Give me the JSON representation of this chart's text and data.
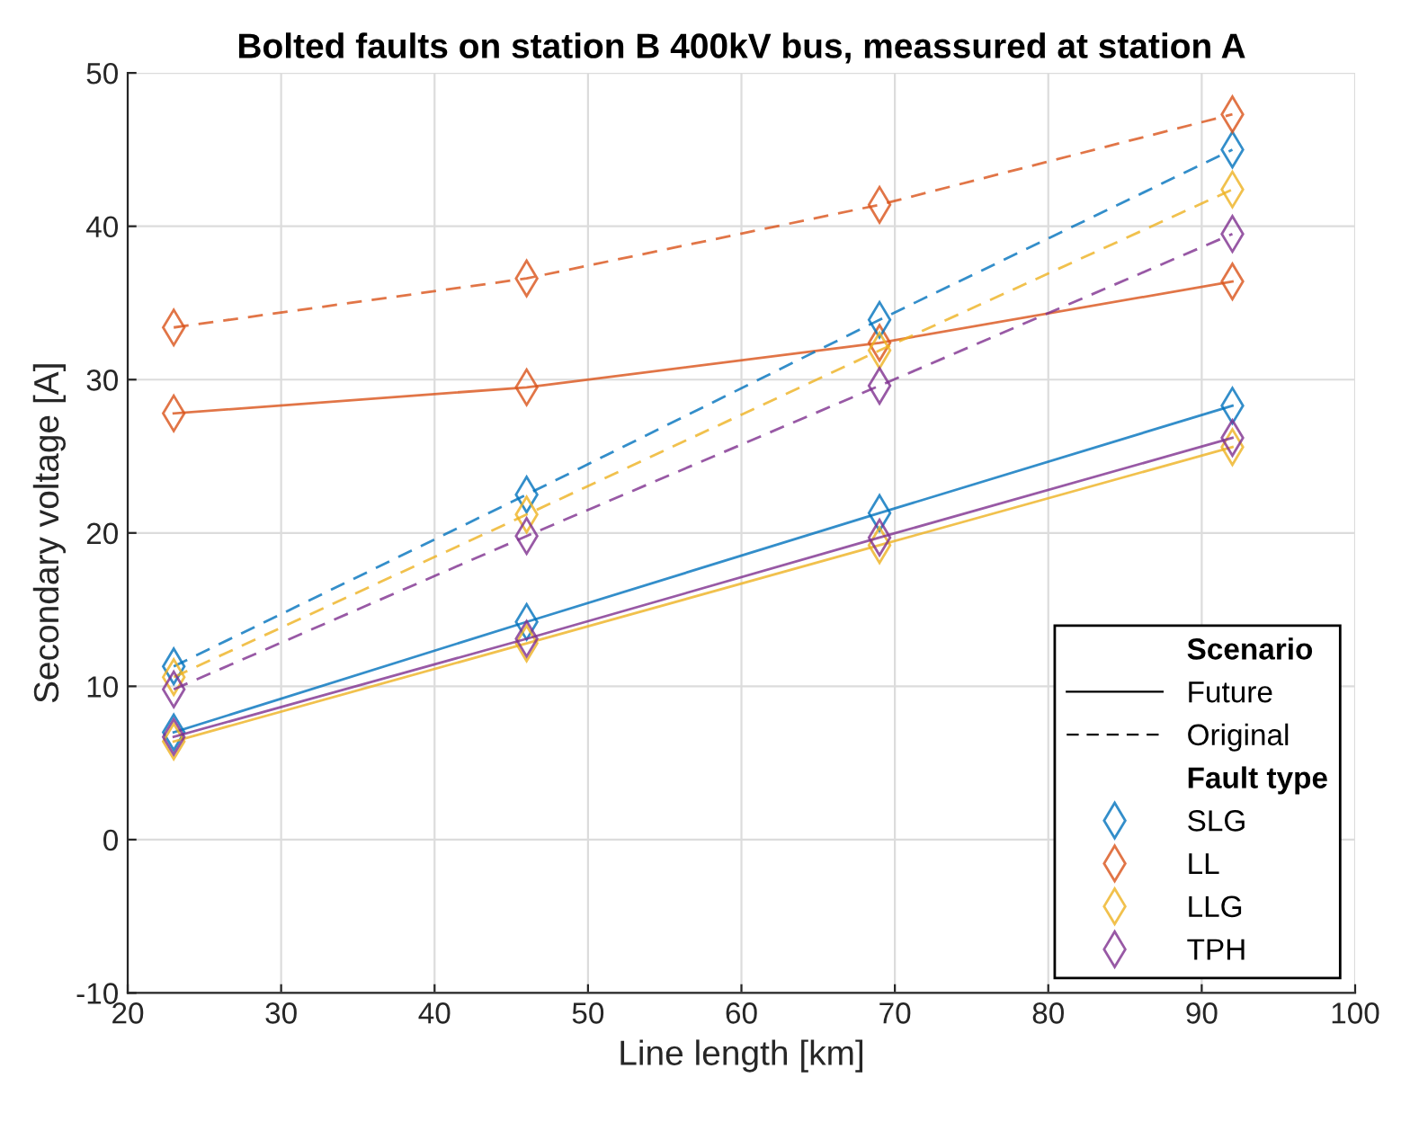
{
  "chart_data": {
    "type": "line",
    "title": "Bolted faults on station B 400kV bus, meassured at station A",
    "xlabel": "Line length [km]",
    "ylabel": "Secondary voltage [A]",
    "x": [
      23,
      46,
      69,
      92
    ],
    "xlim": [
      20,
      100
    ],
    "xticks": [
      20,
      30,
      40,
      50,
      60,
      70,
      80,
      90,
      100
    ],
    "ylim": [
      -10,
      50
    ],
    "yticks": [
      -10,
      0,
      10,
      20,
      30,
      40,
      50
    ],
    "grid": true,
    "legend": "bottom right",
    "marker": "diamond",
    "legend_title": [
      "Scenario",
      "Fault type"
    ],
    "annotations": [
      "Future",
      "Original"
    ],
    "series": [
      {
        "name": "SLG",
        "color": "#0072bd",
        "line_style": "solid",
        "values": [
          7.0,
          14.2,
          21.3,
          28.3
        ]
      },
      {
        "name": "LL",
        "color": "#d95319",
        "line_style": "solid",
        "values": [
          27.8,
          29.5,
          32.4,
          36.4
        ]
      },
      {
        "name": "LLG",
        "color": "#edb120",
        "line_style": "solid",
        "values": [
          6.4,
          12.8,
          19.2,
          25.6
        ]
      },
      {
        "name": "TPH",
        "color": "#7e2f8e",
        "line_style": "solid",
        "values": [
          6.7,
          13.1,
          19.7,
          26.2
        ]
      },
      {
        "color": "#0072bd",
        "line_style": "dashed",
        "values": [
          11.3,
          22.5,
          33.9,
          45.0
        ]
      },
      {
        "color": "#d95319",
        "line_style": "dashed",
        "values": [
          33.4,
          36.6,
          41.4,
          47.3
        ]
      },
      {
        "color": "#edb120",
        "line_style": "dashed",
        "values": [
          10.6,
          21.2,
          31.9,
          42.4
        ]
      },
      {
        "color": "#7e2f8e",
        "line_style": "dashed",
        "values": [
          9.8,
          19.8,
          29.6,
          39.5
        ]
      }
    ]
  }
}
